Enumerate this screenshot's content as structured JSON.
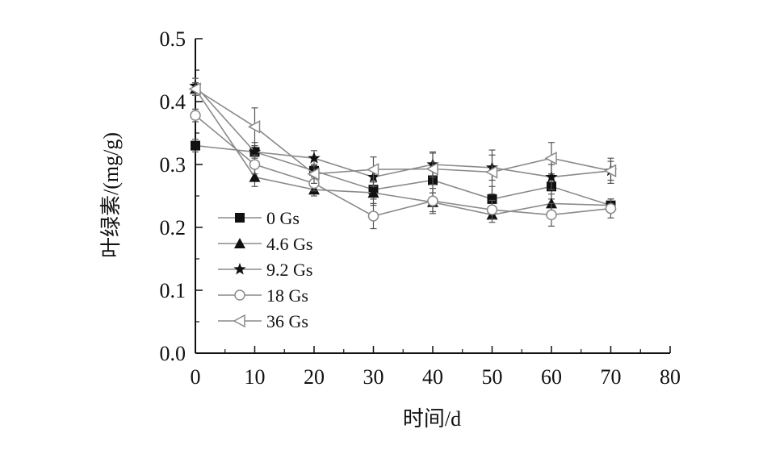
{
  "chart_data": {
    "type": "line",
    "xlabel": "时间/d",
    "ylabel": "叶绿素/(mg/g)",
    "xlim": [
      0,
      80
    ],
    "ylim": [
      0.0,
      0.5
    ],
    "x_ticks": [
      "0",
      "10",
      "20",
      "30",
      "40",
      "50",
      "60",
      "70",
      "80"
    ],
    "y_ticks": [
      "0.0",
      "0.1",
      "0.2",
      "0.3",
      "0.4",
      "0.5"
    ],
    "grid": false,
    "legend_position": "center-left",
    "x": [
      0,
      10,
      20,
      30,
      40,
      50,
      60,
      70
    ],
    "series": [
      {
        "name": "0 Gs",
        "marker": "square-filled",
        "values": [
          0.33,
          0.32,
          0.29,
          0.26,
          0.275,
          0.245,
          0.265,
          0.235
        ],
        "errors": [
          0.01,
          0.015,
          0.01,
          0.015,
          0.02,
          0.02,
          0.02,
          0.01
        ]
      },
      {
        "name": "4.6 Gs",
        "marker": "triangle-filled",
        "values": [
          0.42,
          0.28,
          0.26,
          0.255,
          0.24,
          0.22,
          0.238,
          0.235
        ],
        "errors": [
          0.01,
          0.015,
          0.01,
          0.02,
          0.015,
          0.012,
          0.015,
          0.01
        ]
      },
      {
        "name": "9.2 Gs",
        "marker": "star-filled",
        "values": [
          0.425,
          0.32,
          0.31,
          0.28,
          0.3,
          0.295,
          0.28,
          0.29
        ],
        "errors": [
          0.012,
          0.01,
          0.012,
          0.015,
          0.02,
          0.02,
          0.02,
          0.015
        ]
      },
      {
        "name": "18 Gs",
        "marker": "circle-open",
        "values": [
          0.378,
          0.3,
          0.27,
          0.218,
          0.242,
          0.228,
          0.22,
          0.23
        ],
        "errors": [
          0.01,
          0.015,
          0.012,
          0.02,
          0.02,
          0.015,
          0.018,
          0.015
        ]
      },
      {
        "name": "36 Gs",
        "marker": "triangle-left-open",
        "values": [
          0.42,
          0.36,
          0.285,
          0.292,
          0.293,
          0.288,
          0.31,
          0.29
        ],
        "errors": [
          0.01,
          0.03,
          0.015,
          0.02,
          0.025,
          0.035,
          0.025,
          0.02
        ]
      }
    ],
    "colors": {
      "line": "#8a8a8a",
      "marker": "#111111",
      "axis": "#111111"
    }
  }
}
